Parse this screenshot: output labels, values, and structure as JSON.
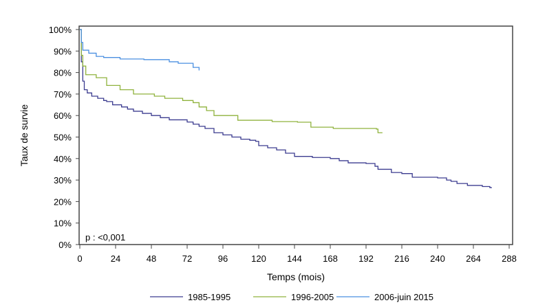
{
  "chart_data": {
    "type": "line",
    "step": true,
    "xlabel": "Temps (mois)",
    "ylabel": "Taux de survie",
    "xlim": [
      0,
      288
    ],
    "ylim": [
      0,
      100
    ],
    "xticks": [
      "0",
      "24",
      "48",
      "72",
      "96",
      "120",
      "144",
      "168",
      "192",
      "216",
      "240",
      "264",
      "288"
    ],
    "yticks": [
      "0%",
      "10%",
      "20%",
      "30%",
      "40%",
      "50%",
      "60%",
      "70%",
      "80%",
      "90%",
      "100%"
    ],
    "annotation": "p : <0,001",
    "legend_position": "bottom",
    "grid": false,
    "series": [
      {
        "name": "1985-1995",
        "color": "#3b3b8f",
        "x": [
          0,
          1,
          2,
          3,
          5,
          8,
          12,
          16,
          18,
          22,
          28,
          32,
          36,
          42,
          48,
          54,
          60,
          72,
          76,
          80,
          84,
          90,
          96,
          102,
          108,
          114,
          118,
          120,
          126,
          132,
          138,
          144,
          156,
          168,
          174,
          180,
          192,
          198,
          200,
          209,
          216,
          223,
          240,
          246,
          249,
          253,
          260,
          270,
          275,
          276
        ],
        "y": [
          100,
          85,
          76,
          72,
          70.5,
          69,
          68,
          67,
          66.5,
          65,
          64,
          63,
          62,
          61,
          60,
          59,
          58,
          57,
          56,
          55,
          54,
          52,
          51,
          50,
          49,
          48.5,
          48,
          46,
          45,
          44,
          42.5,
          41,
          40.5,
          40,
          39,
          38,
          37.7,
          36.4,
          35,
          33.5,
          33,
          31.3,
          31,
          30,
          29.4,
          28.4,
          27.5,
          27,
          26.5,
          26.2
        ]
      },
      {
        "name": "1996-2005",
        "color": "#8fb23c",
        "x": [
          0,
          1,
          2,
          4,
          11,
          18,
          27,
          36,
          50,
          57,
          69,
          76,
          80,
          85,
          90,
          106,
          129,
          146,
          155,
          170,
          199,
          200,
          203
        ],
        "y": [
          100,
          88,
          83,
          79,
          77.6,
          74,
          72,
          70,
          69,
          68,
          67,
          66,
          64,
          62.3,
          60,
          57.8,
          57.2,
          56.9,
          54.6,
          54,
          53.7,
          52,
          52
        ]
      },
      {
        "name": "2006-juin 2015",
        "color": "#4a8fe0",
        "x": [
          0,
          1,
          2,
          6,
          11,
          16,
          27,
          43,
          60,
          66,
          76,
          79,
          80
        ],
        "y": [
          100,
          94,
          90.4,
          89,
          87.5,
          87,
          86.3,
          86,
          85,
          84.3,
          82.4,
          82.4,
          81
        ]
      }
    ]
  }
}
